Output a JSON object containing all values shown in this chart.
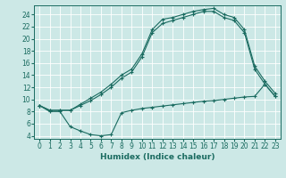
{
  "xlabel": "Humidex (Indice chaleur)",
  "bg_color": "#cce8e6",
  "line_color": "#1a6b60",
  "grid_color": "#ffffff",
  "ylim": [
    3.5,
    25.5
  ],
  "xlim": [
    -0.5,
    23.5
  ],
  "yticks": [
    4,
    6,
    8,
    10,
    12,
    14,
    16,
    18,
    20,
    22,
    24
  ],
  "xticks": [
    0,
    1,
    2,
    3,
    4,
    5,
    6,
    7,
    8,
    9,
    10,
    11,
    12,
    13,
    14,
    15,
    16,
    17,
    18,
    19,
    20,
    21,
    22,
    23
  ],
  "curve1_x": [
    0,
    1,
    2,
    3,
    4,
    5,
    6,
    7,
    8,
    9,
    10,
    11,
    12,
    13,
    14,
    15,
    16,
    17,
    18,
    19,
    20,
    21,
    22,
    23
  ],
  "curve1_y": [
    9.0,
    8.2,
    8.2,
    8.2,
    9.2,
    10.2,
    11.2,
    12.5,
    14.0,
    15.0,
    17.5,
    21.5,
    23.2,
    23.5,
    24.0,
    24.5,
    24.8,
    25.0,
    24.0,
    23.5,
    21.5,
    15.5,
    13.0,
    11.0
  ],
  "curve2_x": [
    0,
    1,
    2,
    3,
    4,
    5,
    6,
    7,
    8,
    9,
    10,
    11,
    12,
    13,
    14,
    15,
    16,
    17,
    18,
    19,
    20,
    21,
    22,
    23
  ],
  "curve2_y": [
    9.0,
    8.2,
    8.2,
    8.2,
    9.0,
    9.8,
    10.8,
    12.0,
    13.5,
    14.5,
    17.0,
    21.0,
    22.5,
    23.0,
    23.5,
    24.0,
    24.5,
    24.5,
    23.5,
    23.0,
    21.0,
    15.0,
    12.5,
    10.5
  ],
  "curve3_x": [
    0,
    1,
    2,
    3,
    4,
    5,
    6,
    7,
    8,
    9,
    10,
    11,
    12,
    13,
    14,
    15,
    16,
    17,
    18,
    19,
    20,
    21,
    22,
    23
  ],
  "curve3_y": [
    9.0,
    8.0,
    8.0,
    5.5,
    4.8,
    4.2,
    4.0,
    4.2,
    7.8,
    8.2,
    8.5,
    8.7,
    8.9,
    9.1,
    9.3,
    9.5,
    9.7,
    9.8,
    10.0,
    10.2,
    10.4,
    10.5,
    12.5,
    10.5
  ],
  "tick_fontsize": 5.5,
  "xlabel_fontsize": 6.5
}
